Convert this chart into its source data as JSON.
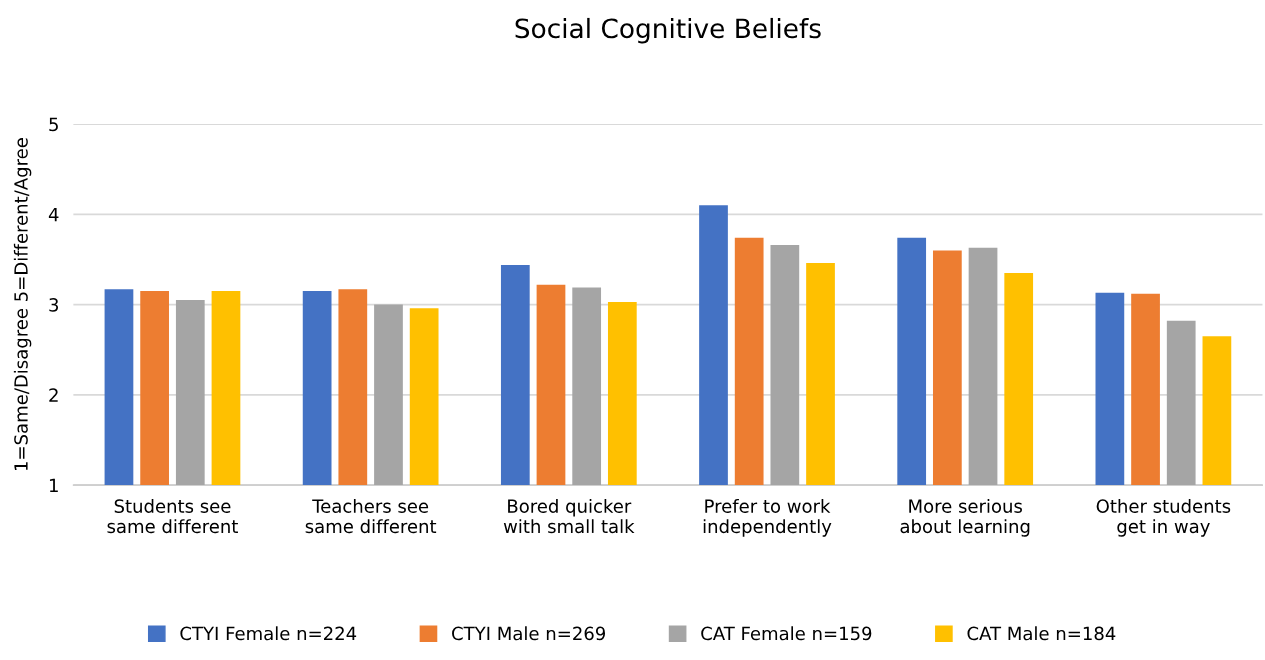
{
  "chart_data": {
    "type": "bar",
    "title": "Social Cognitive Beliefs",
    "ylabel": "1=Same/Disagree 5=Different/Agree",
    "categories": [
      "Students see\nsame different",
      "Teachers see\nsame different",
      "Bored quicker\nwith small talk",
      "Prefer to work\nindependently",
      "More serious\nabout learning",
      "Other students\nget in way"
    ],
    "series": [
      {
        "name": "CTYI Female n=224",
        "color": "#4472c4",
        "values": [
          3.17,
          3.15,
          3.44,
          4.1,
          3.74,
          3.13
        ]
      },
      {
        "name": "CTYI Male n=269",
        "color": "#ed7d31",
        "values": [
          3.15,
          3.17,
          3.22,
          3.74,
          3.6,
          3.12
        ]
      },
      {
        "name": "CAT Female n=159",
        "color": "#a5a5a5",
        "values": [
          3.05,
          3.0,
          3.19,
          3.66,
          3.63,
          2.82
        ]
      },
      {
        "name": "CAT Male n=184",
        "color": "#ffc000",
        "values": [
          3.15,
          2.96,
          3.03,
          3.46,
          3.35,
          2.65
        ]
      }
    ],
    "ylim": [
      1,
      5
    ],
    "yticks": [
      1,
      2,
      3,
      4,
      5
    ],
    "grid": "y",
    "legend": "bottom"
  }
}
